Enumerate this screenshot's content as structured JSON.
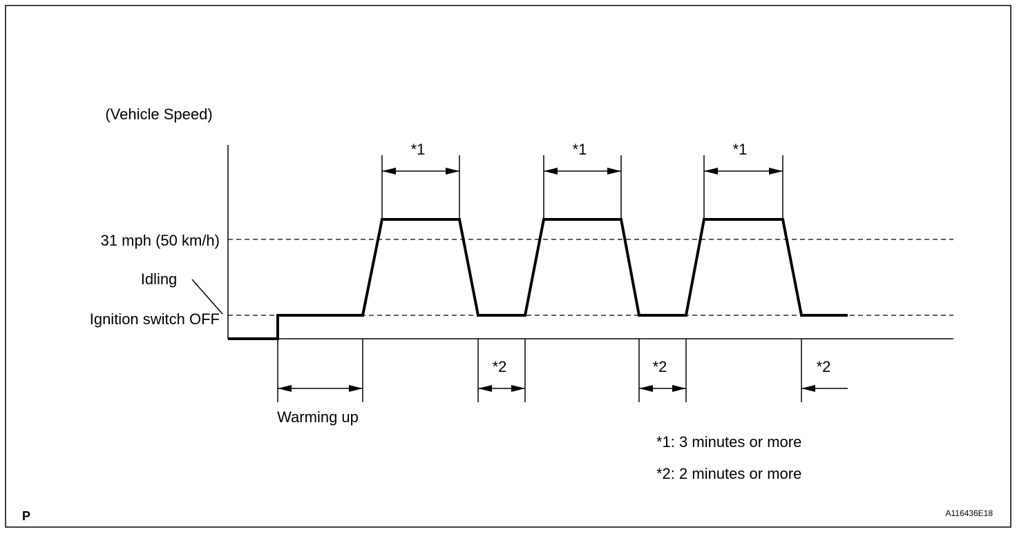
{
  "labels": {
    "y_axis": "(Vehicle Speed)",
    "speed_level": "31 mph (50 km/h)",
    "idling": "Idling",
    "ignition_off": "Ignition switch OFF",
    "warming_up": "Warming up"
  },
  "intervals": {
    "drive": [
      "*1",
      "*1",
      "*1"
    ],
    "idle": [
      "*2",
      "*2",
      "*2"
    ]
  },
  "notes": [
    "*1: 3 minutes or more",
    "*2: 2 minutes or more"
  ],
  "footer": {
    "left": "P",
    "right": "A116436E18"
  }
}
